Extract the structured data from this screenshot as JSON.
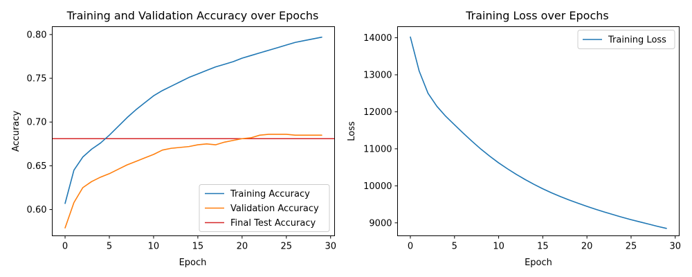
{
  "chart_data": [
    {
      "type": "line",
      "title": "Training and Validation Accuracy over Epochs",
      "xlabel": "Epoch",
      "ylabel": "Accuracy",
      "xlim": [
        -1.45,
        30.45
      ],
      "ylim": [
        0.57,
        0.809
      ],
      "xticks": [
        0,
        5,
        10,
        15,
        20,
        25,
        30
      ],
      "yticks": [
        0.6,
        0.65,
        0.7,
        0.75,
        0.8
      ],
      "ytick_labels": [
        "0.60",
        "0.65",
        "0.70",
        "0.75",
        "0.80"
      ],
      "grid": false,
      "legend_position": "lower-right",
      "x": [
        0,
        1,
        2,
        3,
        4,
        5,
        6,
        7,
        8,
        9,
        10,
        11,
        12,
        13,
        14,
        15,
        16,
        17,
        18,
        19,
        20,
        21,
        22,
        23,
        24,
        25,
        26,
        27,
        28,
        29
      ],
      "series": [
        {
          "name": "Training Accuracy",
          "color": "#1f77b4",
          "values": [
            0.607,
            0.645,
            0.66,
            0.669,
            0.676,
            0.685,
            0.695,
            0.705,
            0.714,
            0.722,
            0.73,
            0.736,
            0.741,
            0.746,
            0.751,
            0.755,
            0.759,
            0.763,
            0.766,
            0.769,
            0.773,
            0.776,
            0.779,
            0.782,
            0.785,
            0.788,
            0.791,
            0.793,
            0.795,
            0.797
          ]
        },
        {
          "name": "Validation Accuracy",
          "color": "#ff7f0e",
          "values": [
            0.579,
            0.608,
            0.625,
            0.632,
            0.637,
            0.641,
            0.646,
            0.651,
            0.655,
            0.659,
            0.663,
            0.668,
            0.67,
            0.671,
            0.672,
            0.674,
            0.675,
            0.674,
            0.677,
            0.679,
            0.681,
            0.682,
            0.685,
            0.686,
            0.686,
            0.686,
            0.685,
            0.685,
            0.685,
            0.685
          ]
        }
      ],
      "hlines": [
        {
          "name": "Final Test Accuracy",
          "color": "#d62728",
          "value": 0.681
        }
      ]
    },
    {
      "type": "line",
      "title": "Training Loss over Epochs",
      "xlabel": "Epoch",
      "ylabel": "Loss",
      "xlim": [
        -1.45,
        30.45
      ],
      "ylim": [
        8650,
        14300
      ],
      "xticks": [
        0,
        5,
        10,
        15,
        20,
        25,
        30
      ],
      "yticks": [
        9000,
        10000,
        11000,
        12000,
        13000,
        14000
      ],
      "ytick_labels": [
        "9000",
        "10000",
        "11000",
        "12000",
        "13000",
        "14000"
      ],
      "grid": false,
      "legend_position": "upper-right",
      "x": [
        0,
        1,
        2,
        3,
        4,
        5,
        6,
        7,
        8,
        9,
        10,
        11,
        12,
        13,
        14,
        15,
        16,
        17,
        18,
        19,
        20,
        21,
        22,
        23,
        24,
        25,
        26,
        27,
        28,
        29
      ],
      "series": [
        {
          "name": "Training Loss",
          "color": "#1f77b4",
          "values": [
            14020,
            13100,
            12500,
            12150,
            11880,
            11650,
            11420,
            11200,
            10990,
            10800,
            10620,
            10460,
            10310,
            10170,
            10040,
            9920,
            9810,
            9710,
            9615,
            9530,
            9445,
            9365,
            9290,
            9220,
            9150,
            9085,
            9025,
            8965,
            8905,
            8850
          ]
        }
      ]
    }
  ]
}
